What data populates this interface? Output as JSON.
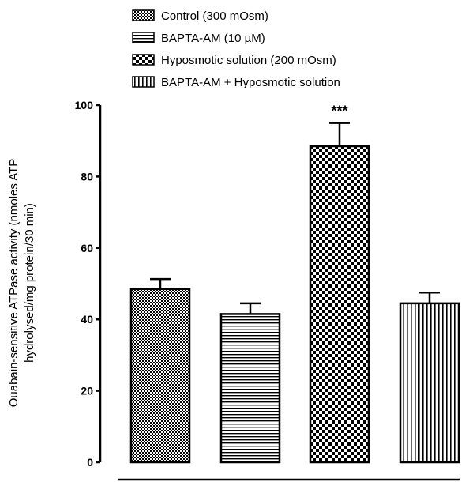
{
  "chart_data": {
    "type": "bar",
    "categories": [
      "Control (300 mOsm)",
      "BAPTA-AM (10 µM)",
      "Hyposmotic solution (200 mOsm)",
      "BAPTA-AM + Hyposmotic solution"
    ],
    "values": [
      48.5,
      41.5,
      88.5,
      44.5
    ],
    "errors": [
      2.8,
      3.0,
      6.5,
      3.0
    ],
    "patterns": [
      "fine-check",
      "horizontal-lines",
      "checker",
      "vertical-lines"
    ],
    "annotations": [
      "",
      "",
      "***",
      ""
    ],
    "ylabel_lines": [
      "Ouabain-sensitive ATPase activity (nmoles ATP",
      "hydrolysed/mg protein/30 min)"
    ],
    "xlabel": "",
    "ylim": [
      0,
      100
    ],
    "yticks": [
      0,
      20,
      40,
      60,
      80,
      100
    ],
    "legend": {
      "placement": "top",
      "entries": [
        "Control (300 mOsm)",
        "BAPTA-AM (10 µM)",
        "Hyposmotic solution (200 mOsm)",
        "BAPTA-AM + Hyposmotic solution"
      ]
    },
    "grid": false,
    "colors": {
      "ink": "#000000",
      "fill": "#ffffff"
    }
  }
}
